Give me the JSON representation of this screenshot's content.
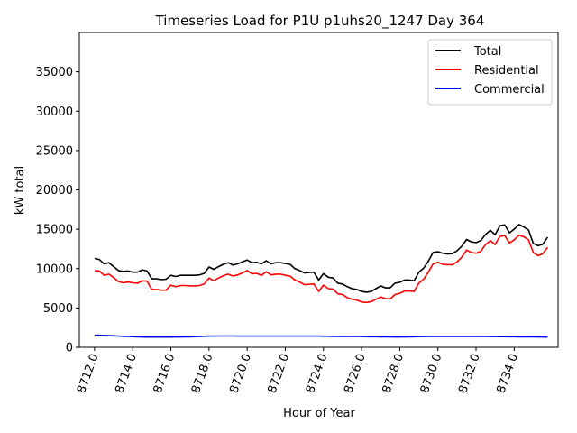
{
  "chart_data": {
    "type": "line",
    "title": "Timeseries Load for P1U p1uhs20_1247  Day 364",
    "xlabel": "Hour of Year",
    "ylabel": "kW total",
    "xlim": [
      8711.2,
      8736.3
    ],
    "ylim": [
      0,
      40000
    ],
    "grid": false,
    "legend_position": "top-right",
    "x_ticks": [
      8712,
      8714,
      8716,
      8718,
      8720,
      8722,
      8724,
      8726,
      8728,
      8730,
      8732,
      8734
    ],
    "x_tick_labels": [
      "8712.0",
      "8714.0",
      "8716.0",
      "8718.0",
      "8720.0",
      "8722.0",
      "8724.0",
      "8726.0",
      "8728.0",
      "8730.0",
      "8732.0",
      "8734.0"
    ],
    "y_ticks": [
      0,
      5000,
      10000,
      15000,
      20000,
      25000,
      30000,
      35000
    ],
    "y_tick_labels": [
      "0",
      "5000",
      "10000",
      "15000",
      "20000",
      "25000",
      "30000",
      "35000"
    ],
    "x": [
      8712.0,
      8712.25,
      8712.5,
      8712.75,
      8713.0,
      8713.25,
      8713.5,
      8713.75,
      8714.0,
      8714.25,
      8714.5,
      8714.75,
      8715.0,
      8715.25,
      8715.5,
      8715.75,
      8716.0,
      8716.25,
      8716.5,
      8716.75,
      8717.0,
      8717.25,
      8717.5,
      8717.75,
      8718.0,
      8718.25,
      8718.5,
      8718.75,
      8719.0,
      8719.25,
      8719.5,
      8719.75,
      8720.0,
      8720.25,
      8720.5,
      8720.75,
      8721.0,
      8721.25,
      8721.5,
      8721.75,
      8722.0,
      8722.25,
      8722.5,
      8722.75,
      8723.0,
      8723.25,
      8723.5,
      8723.75,
      8724.0,
      8724.25,
      8724.5,
      8724.75,
      8725.0,
      8725.25,
      8725.5,
      8725.75,
      8726.0,
      8726.25,
      8726.5,
      8726.75,
      8727.0,
      8727.25,
      8727.5,
      8727.75,
      8728.0,
      8728.25,
      8728.5,
      8728.75,
      8729.0,
      8729.25,
      8729.5,
      8729.75,
      8730.0,
      8730.25,
      8730.5,
      8730.75,
      8731.0,
      8731.25,
      8731.5,
      8731.75,
      8732.0,
      8732.25,
      8732.5,
      8732.75,
      8733.0,
      8733.25,
      8733.5,
      8733.75,
      8734.0,
      8734.25,
      8734.5,
      8734.75,
      8735.0,
      8735.25,
      8735.5,
      8735.75
    ],
    "series": [
      {
        "name": "Total",
        "color": "#000000",
        "values": [
          11300,
          11150,
          10600,
          10750,
          10250,
          9750,
          9650,
          9700,
          9550,
          9550,
          9850,
          9700,
          8700,
          8700,
          8600,
          8650,
          9150,
          9000,
          9150,
          9150,
          9150,
          9150,
          9200,
          9400,
          10200,
          9900,
          10250,
          10550,
          10750,
          10450,
          10600,
          10850,
          11100,
          10750,
          10800,
          10600,
          11000,
          10600,
          10750,
          10750,
          10650,
          10550,
          10000,
          9750,
          9450,
          9500,
          9550,
          8550,
          9350,
          8900,
          8800,
          8150,
          8050,
          7700,
          7450,
          7350,
          7100,
          7000,
          7100,
          7450,
          7800,
          7550,
          7550,
          8150,
          8250,
          8550,
          8550,
          8450,
          9550,
          10050,
          10950,
          12050,
          12150,
          11950,
          11850,
          11900,
          12250,
          12850,
          13700,
          13400,
          13300,
          13550,
          14350,
          14850,
          14300,
          15450,
          15550,
          14550,
          15000,
          15600,
          15300,
          14900,
          13200,
          12900,
          13100,
          14000
        ]
      },
      {
        "name": "Residential",
        "color": "#ff0000",
        "values": [
          9750,
          9700,
          9150,
          9300,
          8850,
          8350,
          8200,
          8300,
          8200,
          8150,
          8450,
          8400,
          7350,
          7350,
          7250,
          7250,
          7900,
          7700,
          7850,
          7850,
          7800,
          7800,
          7850,
          8050,
          8800,
          8450,
          8800,
          9100,
          9300,
          9050,
          9200,
          9450,
          9750,
          9350,
          9400,
          9150,
          9600,
          9200,
          9300,
          9300,
          9150,
          9050,
          8550,
          8300,
          7950,
          8000,
          8050,
          7100,
          7900,
          7450,
          7400,
          6800,
          6700,
          6300,
          6100,
          6000,
          5750,
          5700,
          5800,
          6100,
          6400,
          6200,
          6150,
          6700,
          6850,
          7150,
          7150,
          7100,
          8150,
          8650,
          9550,
          10600,
          10800,
          10550,
          10500,
          10500,
          10850,
          11450,
          12350,
          12050,
          11950,
          12200,
          13050,
          13550,
          13050,
          14100,
          14200,
          13250,
          13650,
          14250,
          14050,
          13650,
          12050,
          11650,
          11900,
          12700
        ]
      },
      {
        "name": "Commercial",
        "color": "#0000ff",
        "values": [
          1550,
          1520,
          1500,
          1480,
          1450,
          1420,
          1400,
          1380,
          1350,
          1330,
          1310,
          1300,
          1300,
          1300,
          1300,
          1300,
          1300,
          1310,
          1310,
          1320,
          1330,
          1350,
          1370,
          1400,
          1420,
          1420,
          1430,
          1430,
          1430,
          1430,
          1420,
          1420,
          1420,
          1420,
          1420,
          1420,
          1420,
          1420,
          1420,
          1420,
          1420,
          1420,
          1420,
          1420,
          1420,
          1420,
          1420,
          1420,
          1410,
          1400,
          1390,
          1380,
          1370,
          1370,
          1370,
          1370,
          1360,
          1350,
          1340,
          1340,
          1330,
          1320,
          1320,
          1310,
          1310,
          1320,
          1330,
          1340,
          1350,
          1360,
          1370,
          1380,
          1380,
          1380,
          1380,
          1380,
          1380,
          1380,
          1380,
          1380,
          1380,
          1370,
          1370,
          1360,
          1360,
          1350,
          1350,
          1340,
          1340,
          1330,
          1330,
          1320,
          1320,
          1310,
          1310,
          1300
        ]
      }
    ]
  }
}
